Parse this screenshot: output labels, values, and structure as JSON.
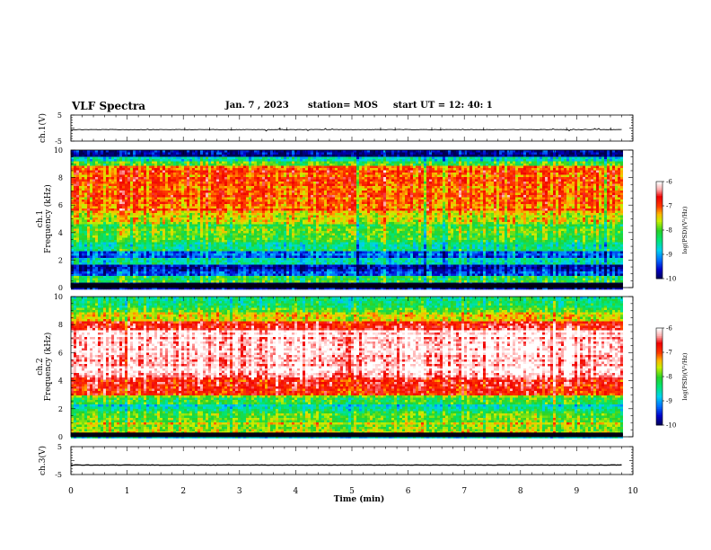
{
  "header": {
    "title": "VLF Spectra",
    "date": "Jan. 7 , 2023",
    "station": "station= MOS",
    "start": "start  UT =   12: 40: 1"
  },
  "chart_data": [
    {
      "type": "line",
      "name": "ch1-voltage",
      "ylabel": "ch.1(V)",
      "ylim": [
        -5,
        5
      ],
      "yticks": [
        "5",
        "-5"
      ],
      "level": -0.6,
      "xlim": [
        0,
        10
      ]
    },
    {
      "type": "heatmap",
      "name": "ch1-spectrogram",
      "ylabel_top": "ch.1",
      "ylabel": "Frequency  (kHz)",
      "ylim": [
        0,
        10
      ],
      "yticks": [
        "0",
        "2",
        "4",
        "6",
        "8",
        "10"
      ],
      "xlim": [
        0,
        9.82
      ],
      "bands": [
        {
          "from": 0,
          "to": 0.3,
          "level": -10
        },
        {
          "from": 0.3,
          "to": 0.8,
          "level": -8.2
        },
        {
          "from": 0.8,
          "to": 1.1,
          "level": -9.3
        },
        {
          "from": 1.1,
          "to": 1.7,
          "level": -9.6
        },
        {
          "from": 1.7,
          "to": 2.2,
          "level": -8.6
        },
        {
          "from": 2.2,
          "to": 2.6,
          "level": -9.2
        },
        {
          "from": 2.6,
          "to": 3.3,
          "level": -8.4
        },
        {
          "from": 3.3,
          "to": 4.6,
          "level": -8.0
        },
        {
          "from": 4.6,
          "to": 5.6,
          "level": -7.5
        },
        {
          "from": 5.6,
          "to": 8.8,
          "level": -7.0
        },
        {
          "from": 8.8,
          "to": 9.2,
          "level": -7.8
        },
        {
          "from": 9.2,
          "to": 9.5,
          "level": -8.8
        },
        {
          "from": 9.5,
          "to": 10,
          "level": -9.8
        }
      ],
      "colorbar": {
        "label": "log(PSD)(V²/Hz)",
        "ticks": [
          "-6",
          "-7",
          "-8",
          "-9",
          "-10"
        ],
        "range": [
          -10,
          -6
        ]
      }
    },
    {
      "type": "heatmap",
      "name": "ch2-spectrogram",
      "ylabel_top": "ch.2",
      "ylabel": "Frequency  (kHz)",
      "ylim": [
        0,
        10
      ],
      "yticks": [
        "0",
        "2",
        "4",
        "6",
        "8",
        "10"
      ],
      "xlim": [
        0,
        9.82
      ],
      "bands": [
        {
          "from": 0,
          "to": 0.3,
          "level": -10
        },
        {
          "from": 0.3,
          "to": 1.0,
          "level": -7.6
        },
        {
          "from": 1.0,
          "to": 1.8,
          "level": -8.0
        },
        {
          "from": 1.8,
          "to": 2.3,
          "level": -8.5
        },
        {
          "from": 2.3,
          "to": 2.9,
          "level": -7.9
        },
        {
          "from": 2.9,
          "to": 3.5,
          "level": -6.9
        },
        {
          "from": 3.5,
          "to": 4.2,
          "level": -6.6
        },
        {
          "from": 4.2,
          "to": 7.6,
          "level": -6.1
        },
        {
          "from": 7.6,
          "to": 8.3,
          "level": -6.7
        },
        {
          "from": 8.3,
          "to": 8.9,
          "level": -7.5
        },
        {
          "from": 8.9,
          "to": 9.5,
          "level": -8.1
        },
        {
          "from": 9.5,
          "to": 10,
          "level": -8.5
        }
      ],
      "colorbar": {
        "label": "log(PSD)(V²/Hz)",
        "ticks": [
          "-6",
          "-7",
          "-8",
          "-9",
          "-10"
        ],
        "range": [
          -10,
          -6
        ]
      }
    },
    {
      "type": "line",
      "name": "ch3-voltage",
      "ylabel": "ch.3(V)",
      "ylim": [
        -5,
        5
      ],
      "yticks": [
        "5",
        "-5"
      ],
      "level": -1.6,
      "xlim": [
        0,
        10
      ]
    }
  ],
  "x_axis": {
    "label": "Time  (min)",
    "ticks": [
      "0",
      "1",
      "2",
      "3",
      "4",
      "5",
      "6",
      "7",
      "8",
      "9",
      "10"
    ],
    "xlim": [
      0,
      10
    ]
  }
}
